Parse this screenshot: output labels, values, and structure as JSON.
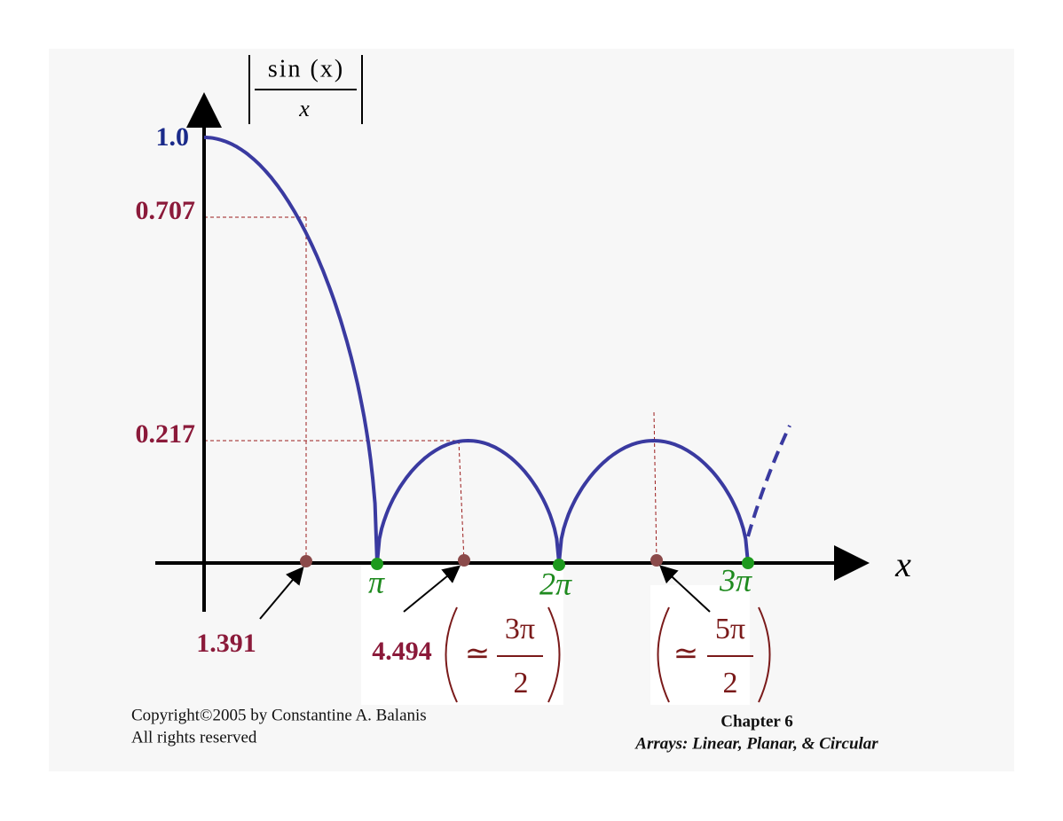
{
  "y_axis_label": {
    "numerator": "sin (x)",
    "denominator": "x"
  },
  "x_axis_label": "x",
  "y_labels": [
    "1.0",
    "0.707",
    "0.217"
  ],
  "zero_labels": [
    "π",
    "2π",
    "3π"
  ],
  "annotations": [
    {
      "value": "1.391"
    },
    {
      "value": "4.494",
      "approx": {
        "symbol": "≃",
        "numerator": "3π",
        "denominator": "2"
      }
    },
    {
      "approx": {
        "symbol": "≃",
        "numerator": "5π",
        "denominator": "2"
      }
    }
  ],
  "footer": {
    "copyright": [
      "Copyright©2005  by Constantine A. Balanis",
      "All rights reserved"
    ],
    "chapter": "Chapter 6",
    "book_title": "Arrays:  Linear, Planar, & Circular"
  }
}
